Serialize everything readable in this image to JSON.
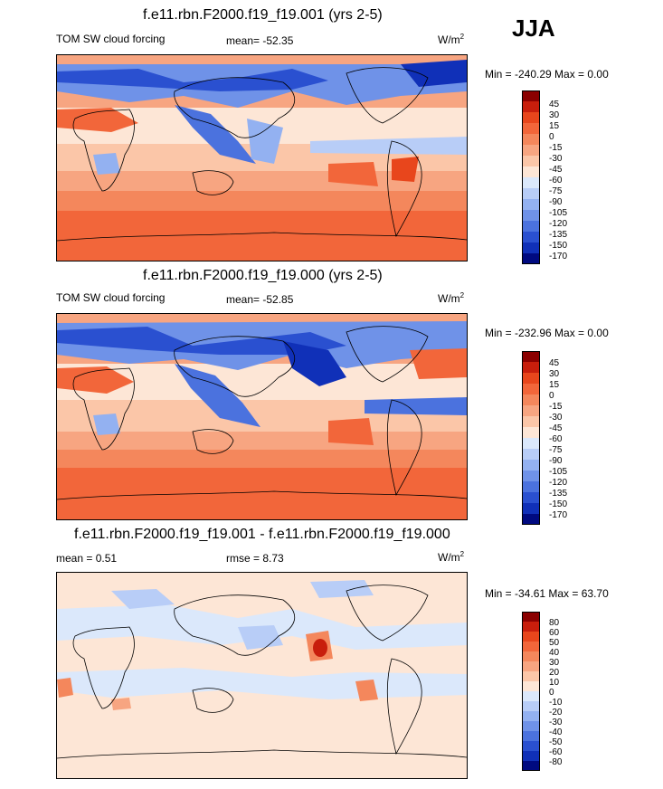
{
  "season": "JJA",
  "panels": [
    {
      "title": "f.e11.rbn.F2000.f19_f19.001 (yrs 2-5)",
      "left_label": "TOM SW cloud forcing",
      "center_label": "mean= -52.35",
      "units_base": "W/m",
      "units_exp": "2",
      "minmax": "Min = -240.29 Max =   0.00"
    },
    {
      "title": "f.e11.rbn.F2000.f19_f19.000 (yrs 2-5)",
      "left_label": "TOM SW cloud forcing",
      "center_label": "mean= -52.85",
      "units_base": "W/m",
      "units_exp": "2",
      "minmax": "Min = -232.96 Max =   0.00"
    },
    {
      "title": "f.e11.rbn.F2000.f19_f19.001 - f.e11.rbn.F2000.f19_f19.000",
      "left_label": "mean =   0.51",
      "center_label": "rmse =   8.73",
      "units_base": "W/m",
      "units_exp": "2",
      "minmax": "Min = -34.61 Max =  63.70"
    }
  ],
  "chart_data": [
    {
      "type": "heatmap",
      "title": "f.e11.rbn.F2000.f19_f19.001 (yrs 2-5)",
      "variable": "TOM SW cloud forcing",
      "mean": -52.35,
      "min": -240.29,
      "max": 0.0,
      "units": "W/m2",
      "colorbar_levels": [
        "45",
        "30",
        "15",
        "0",
        "-15",
        "-30",
        "-45",
        "-60",
        "-75",
        "-90",
        "-105",
        "-120",
        "-135",
        "-150",
        "-170"
      ],
      "colorbar_colors": [
        "#8b0000",
        "#c81e0c",
        "#e8461c",
        "#f2663a",
        "#f4875c",
        "#f7a581",
        "#fbc6a8",
        "#fde6d6",
        "#dbe8fb",
        "#b8cdf7",
        "#93b1f1",
        "#6f92e8",
        "#4b72de",
        "#2a50d0",
        "#1030b8",
        "#000a80"
      ]
    },
    {
      "type": "heatmap",
      "title": "f.e11.rbn.F2000.f19_f19.000 (yrs 2-5)",
      "variable": "TOM SW cloud forcing",
      "mean": -52.85,
      "min": -232.96,
      "max": 0.0,
      "units": "W/m2",
      "colorbar_levels": [
        "45",
        "30",
        "15",
        "0",
        "-15",
        "-30",
        "-45",
        "-60",
        "-75",
        "-90",
        "-105",
        "-120",
        "-135",
        "-150",
        "-170"
      ],
      "colorbar_colors": [
        "#8b0000",
        "#c81e0c",
        "#e8461c",
        "#f2663a",
        "#f4875c",
        "#f7a581",
        "#fbc6a8",
        "#fde6d6",
        "#dbe8fb",
        "#b8cdf7",
        "#93b1f1",
        "#6f92e8",
        "#4b72de",
        "#2a50d0",
        "#1030b8",
        "#000a80"
      ]
    },
    {
      "type": "heatmap",
      "title": "f.e11.rbn.F2000.f19_f19.001 - f.e11.rbn.F2000.f19_f19.000",
      "mean": 0.51,
      "rmse": 8.73,
      "min": -34.61,
      "max": 63.7,
      "units": "W/m2",
      "colorbar_levels": [
        "80",
        "60",
        "50",
        "40",
        "30",
        "20",
        "10",
        "0",
        "-10",
        "-20",
        "-30",
        "-40",
        "-50",
        "-60",
        "-80"
      ],
      "colorbar_colors": [
        "#8b0000",
        "#c81e0c",
        "#e8461c",
        "#f2663a",
        "#f4875c",
        "#f7a581",
        "#fbc6a8",
        "#fde6d6",
        "#dbe8fb",
        "#b8cdf7",
        "#93b1f1",
        "#6f92e8",
        "#4b72de",
        "#2a50d0",
        "#1030b8",
        "#000a80"
      ]
    }
  ]
}
